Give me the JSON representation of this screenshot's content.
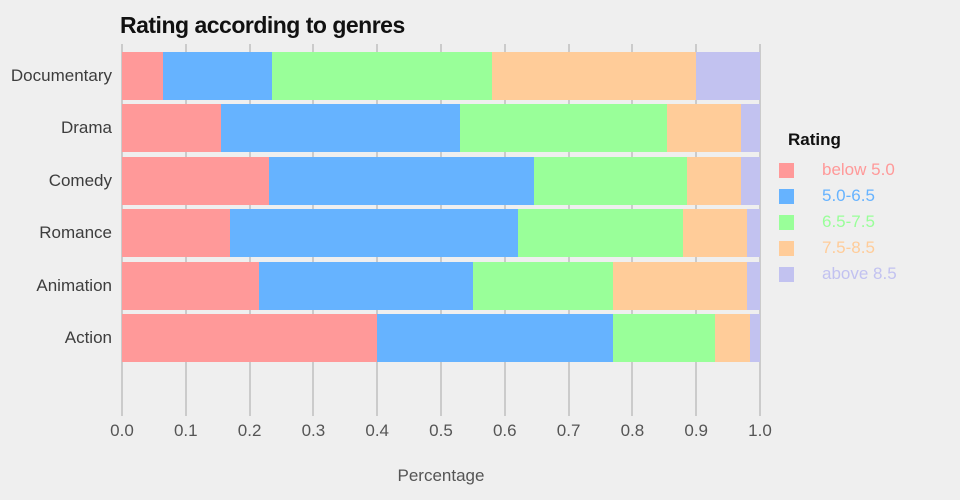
{
  "title": "Rating according to genres",
  "xlabel": "Percentage",
  "legend": {
    "title": "Rating",
    "items": [
      {
        "label": "below 5.0",
        "color": "#ff9999"
      },
      {
        "label": "5.0-6.5",
        "color": "#66b3ff"
      },
      {
        "label": "6.5-7.5",
        "color": "#99ff99"
      },
      {
        "label": "7.5-8.5",
        "color": "#ffcc99"
      },
      {
        "label": "above 8.5",
        "color": "#c2c2f0"
      }
    ]
  },
  "chart_data": {
    "type": "bar",
    "orientation": "horizontal",
    "stacked": true,
    "title": "Rating according to genres",
    "xlabel": "Percentage",
    "ylabel": "",
    "categories": [
      "Documentary",
      "Drama",
      "Comedy",
      "Romance",
      "Animation",
      "Action"
    ],
    "series": [
      {
        "name": "below 5.0",
        "color": "#ff9999",
        "values": [
          0.065,
          0.155,
          0.23,
          0.17,
          0.215,
          0.4
        ]
      },
      {
        "name": "5.0-6.5",
        "color": "#66b3ff",
        "values": [
          0.17,
          0.375,
          0.415,
          0.45,
          0.335,
          0.37
        ]
      },
      {
        "name": "6.5-7.5",
        "color": "#99ff99",
        "values": [
          0.345,
          0.325,
          0.24,
          0.26,
          0.22,
          0.16
        ]
      },
      {
        "name": "7.5-8.5",
        "color": "#ffcc99",
        "values": [
          0.32,
          0.115,
          0.085,
          0.1,
          0.21,
          0.055
        ]
      },
      {
        "name": "above 8.5",
        "color": "#c2c2f0",
        "values": [
          0.1,
          0.03,
          0.03,
          0.02,
          0.02,
          0.015
        ]
      }
    ],
    "xticks": [
      0.0,
      0.1,
      0.2,
      0.3,
      0.4,
      0.5,
      0.6,
      0.7,
      0.8,
      0.9,
      1.0
    ],
    "xlim": [
      0.0,
      1.0
    ],
    "grid": true,
    "legend_position": "right",
    "legend_title": "Rating"
  },
  "colors": {
    "background": "#efefef",
    "grid": "#cbcbcb",
    "axis_text": "#555555",
    "category_text": "#3d3d3d",
    "title_text": "#111111"
  }
}
